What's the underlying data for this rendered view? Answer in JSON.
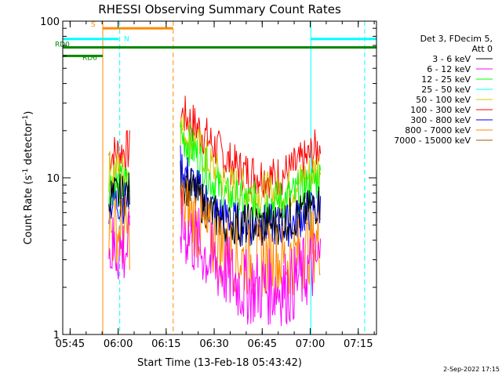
{
  "chart_data": {
    "type": "line",
    "title": "RHESSI Observing Summary Count Rates",
    "xlabel": "Start Time (13-Feb-18 05:43:42)",
    "ylabel_main": "Count Rate (s",
    "ylabel_exp1": "-1",
    "ylabel_mid": " detector",
    "ylabel_exp2": "-1",
    "ylabel_end": ")",
    "xlim_minutes": [
      -1.0,
      97.0
    ],
    "y_log": true,
    "ylim": [
      1,
      100
    ],
    "xticks": [
      {
        "label": "05:45",
        "minute": 1.3
      },
      {
        "label": "06:00",
        "minute": 16.3
      },
      {
        "label": "06:15",
        "minute": 31.3
      },
      {
        "label": "06:30",
        "minute": 46.3
      },
      {
        "label": "06:45",
        "minute": 61.3
      },
      {
        "label": "07:00",
        "minute": 76.3
      },
      {
        "label": "07:15",
        "minute": 91.3
      }
    ],
    "yticks": [
      {
        "label": "1",
        "value": 1
      },
      {
        "label": "10",
        "value": 10
      },
      {
        "label": "100",
        "value": 100
      }
    ],
    "legend_header": [
      "Det 3, FDecim 5,",
      "Att 0"
    ],
    "series": [
      {
        "name": "3 - 6 keV",
        "color": "#000000"
      },
      {
        "name": "6 - 12 keV",
        "color": "#ff00ff"
      },
      {
        "name": "12 - 25 keV",
        "color": "#00ff00"
      },
      {
        "name": "25 - 50 keV",
        "color": "#00ffff"
      },
      {
        "name": "50 - 100 keV",
        "color": "#cccc00"
      },
      {
        "name": "100 - 300 keV",
        "color": "#ff0000"
      },
      {
        "name": "300 - 800 keV",
        "color": "#0000ff"
      },
      {
        "name": "800 - 7000 keV",
        "color": "#ff8800"
      },
      {
        "name": "7000 - 15000 keV",
        "color": "#aa5500"
      }
    ],
    "flags": [
      {
        "label": "S",
        "color": "#ff8800",
        "value": 90,
        "segments": [
          [
            11.5,
            33.5
          ]
        ]
      },
      {
        "label": "N",
        "color": "#00ffff",
        "value": 77,
        "segments": [
          [
            -1.0,
            16.5
          ],
          [
            76.5,
            97.0
          ]
        ]
      },
      {
        "label": "RD0",
        "color": "#008800",
        "value": 68,
        "segments": [
          [
            -1.0,
            33.5
          ],
          [
            33.5,
            47.5
          ],
          [
            47.5,
            76.5
          ],
          [
            76.5,
            97.0
          ]
        ]
      },
      {
        "label": "RD6",
        "color": "#008800",
        "value": 60,
        "segments": [
          [
            -1.0,
            11.5
          ]
        ]
      }
    ],
    "vlines": [
      {
        "minute": -1.0,
        "color": "#00ffff",
        "style": "solid"
      },
      {
        "minute": 11.5,
        "color": "#ff8800",
        "style": "solid"
      },
      {
        "minute": 16.8,
        "color": "#00ffff",
        "style": "dashed"
      },
      {
        "minute": 33.5,
        "color": "#ff8800",
        "style": "dashed"
      },
      {
        "minute": 76.5,
        "color": "#00ffff",
        "style": "solid"
      },
      {
        "minute": 93.3,
        "color": "#00ffff",
        "style": "dashed"
      }
    ],
    "data_intervals": [
      [
        13.4,
        20.0
      ],
      [
        35.5,
        79.5
      ]
    ],
    "band_profiles": [
      {
        "band": "100 - 300 keV",
        "minutes": [
          13.4,
          20.0,
          35.5,
          40,
          45,
          50,
          55,
          60,
          65,
          70,
          75,
          79.5
        ],
        "values": [
          14,
          15,
          26,
          22,
          17,
          13,
          11,
          10.5,
          10,
          11,
          13,
          16
        ]
      },
      {
        "band": "50 - 100 keV",
        "minutes": [
          13.4,
          20.0,
          35.5,
          40,
          45,
          50,
          55,
          60,
          65,
          70,
          75,
          79.5
        ],
        "values": [
          11,
          11,
          21,
          17,
          12,
          9,
          8.5,
          8,
          8,
          8.5,
          10,
          12
        ]
      },
      {
        "band": "12 - 25 keV",
        "minutes": [
          13.4,
          20.0,
          35.5,
          40,
          45,
          50,
          55,
          60,
          65,
          70,
          75,
          79.5
        ],
        "values": [
          9,
          9,
          19,
          15,
          10,
          7.5,
          7,
          7,
          7,
          7.5,
          8.5,
          10
        ]
      },
      {
        "band": "300 - 800 keV",
        "minutes": [
          13.4,
          20.0,
          35.5,
          40,
          45,
          50,
          55,
          60,
          65,
          70,
          75,
          79.5
        ],
        "values": [
          7,
          7,
          12,
          9,
          6.5,
          5.5,
          5,
          5,
          5,
          5,
          6,
          6.5
        ]
      },
      {
        "band": "3 - 6 keV",
        "minutes": [
          13.4,
          20.0,
          35.5,
          40,
          45,
          50,
          55,
          60,
          65,
          70,
          75,
          79.5
        ],
        "values": [
          7.5,
          8,
          10,
          8,
          6,
          5,
          5,
          5,
          5,
          5.5,
          6,
          7
        ]
      },
      {
        "band": "800 - 7000 keV",
        "minutes": [
          13.4,
          20.0,
          35.5,
          40,
          45,
          50,
          55,
          60,
          65,
          70,
          75,
          79.5
        ],
        "values": [
          4.5,
          4.5,
          6.5,
          5.5,
          4,
          3.5,
          3,
          3,
          3,
          3,
          3.5,
          4
        ]
      },
      {
        "band": "6 - 12 keV",
        "minutes": [
          13.4,
          20.0,
          35.5,
          40,
          45,
          50,
          55,
          60,
          65,
          70,
          75,
          79.5
        ],
        "values": [
          3.5,
          3.5,
          5,
          4,
          3,
          2.5,
          2,
          2,
          2,
          2,
          2.5,
          3
        ]
      }
    ]
  },
  "footer_date": "2-Sep-2022 17:15"
}
